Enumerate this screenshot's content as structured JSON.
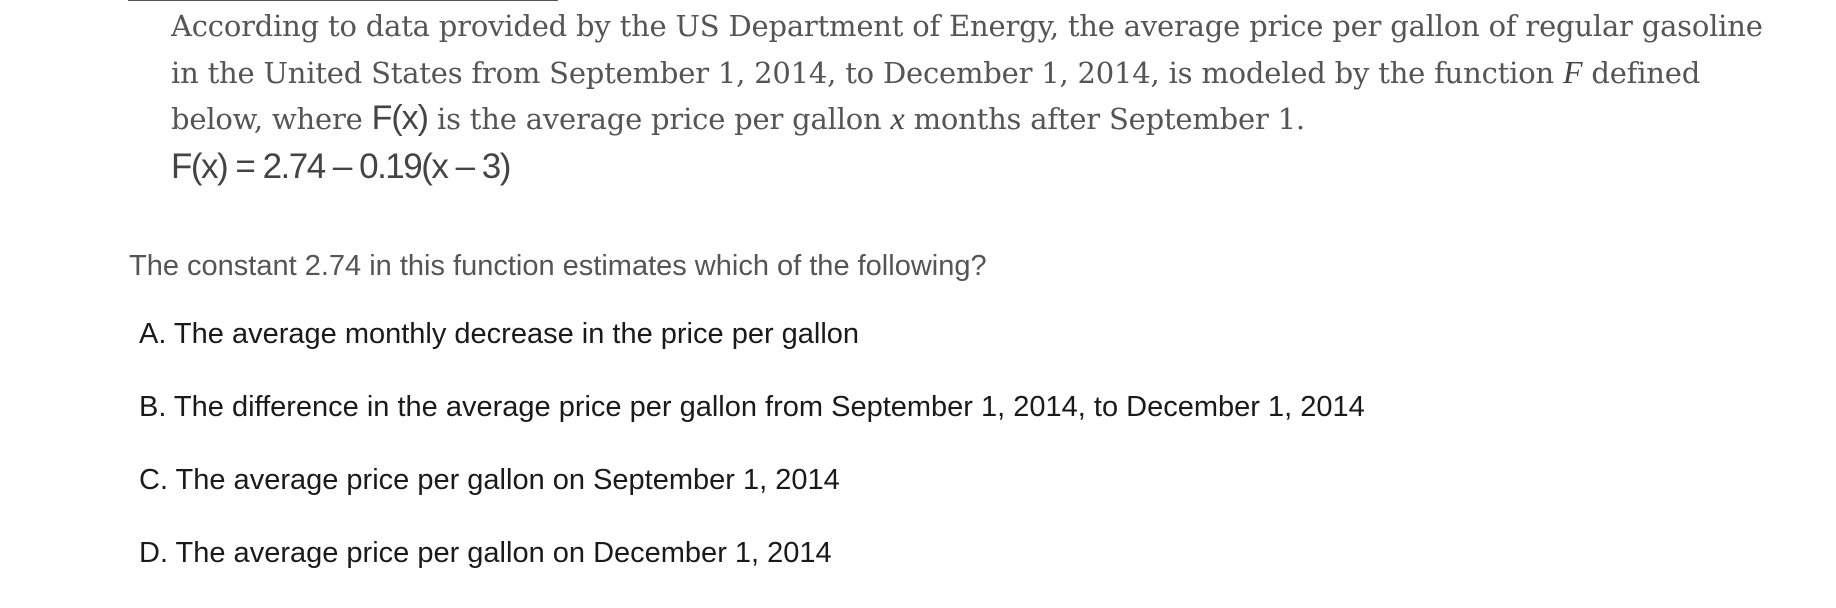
{
  "passage": {
    "line1": "According to data provided by the US Department of Energy, the average price per gallon of regular gasoline",
    "line2_pre": "in the United States from September 1, 2014, to December 1, 2014, is modeled by the function ",
    "line2_var": "F",
    "line2_post": " defined",
    "line3_pre": "below, where ",
    "line3_fx": "F(x)",
    "line3_mid": " is the average price per gallon ",
    "line3_var": "x",
    "line3_post": " months after September 1."
  },
  "formula": "F(x) = 2.74 – 0.19(x – 3)",
  "question": "The constant 2.74 in this function estimates which of the following?",
  "choices": [
    {
      "label": "A. The average monthly decrease in the price per gallon"
    },
    {
      "label": "B. The difference in the average price per gallon from September 1, 2014, to December 1, 2014"
    },
    {
      "label": "C. The average price per gallon on September 1, 2014"
    },
    {
      "label": "D. The average price per gallon on December 1, 2014"
    }
  ]
}
